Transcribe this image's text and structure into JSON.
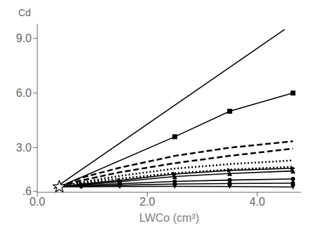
{
  "chart_data": {
    "type": "line",
    "x_label": "LWCo (cm³)",
    "y_label": "Cd",
    "xlim": [
      0.0,
      4.8
    ],
    "xticks": [
      {
        "value": 0.0,
        "label": "0.0"
      },
      {
        "value": 2.0,
        "label": "2.0"
      },
      {
        "value": 4.0,
        "label": "4.0"
      }
    ],
    "ylim": [
      0.55,
      9.8
    ],
    "yticks": [
      {
        "value": 0.6,
        "label": ".6"
      },
      {
        "value": 3.0,
        "label": "3.0"
      },
      {
        "value": 6.0,
        "label": "6.0"
      },
      {
        "value": 9.0,
        "label": "9.0"
      }
    ],
    "grid": false,
    "series": [
      {
        "x": [
          0.3,
          4.5
        ],
        "values": [
          0.75,
          9.5
        ],
        "color": "black",
        "line_style": "solid",
        "marker": "none"
      },
      {
        "x": [
          0.4,
          2.5,
          3.5,
          4.65
        ],
        "values": [
          0.85,
          3.6,
          5.0,
          6.0
        ],
        "color": "black",
        "line_style": "solid",
        "marker": "square"
      },
      {
        "x": [
          0.4,
          0.8,
          1.5,
          2.5,
          3.5,
          4.65
        ],
        "values": [
          0.85,
          1.35,
          1.9,
          2.55,
          3.0,
          3.35
        ],
        "color": "black",
        "line_style": "dashed",
        "marker": "none"
      },
      {
        "x": [
          0.4,
          0.8,
          1.5,
          2.5,
          3.5,
          4.65
        ],
        "values": [
          0.85,
          1.2,
          1.65,
          2.15,
          2.55,
          2.95
        ],
        "color": "black",
        "line_style": "dashed",
        "marker": "none"
      },
      {
        "x": [
          0.4,
          0.8,
          1.5,
          2.5,
          3.5,
          4.65
        ],
        "values": [
          0.85,
          1.1,
          1.45,
          1.85,
          2.1,
          2.3
        ],
        "color": "black",
        "line_style": "dotted",
        "marker": "none"
      },
      {
        "x": [
          0.4,
          0.8,
          1.5,
          2.5,
          3.5,
          4.65
        ],
        "values": [
          0.85,
          1.05,
          1.3,
          1.6,
          1.8,
          1.95
        ],
        "color": "black",
        "line_style": "dotted",
        "marker": "none"
      },
      {
        "x": [
          0.4,
          0.8,
          1.5,
          2.5,
          3.5,
          4.65
        ],
        "values": [
          0.85,
          1.0,
          1.2,
          1.55,
          1.75,
          1.87
        ],
        "color": "black",
        "line_style": "solid",
        "marker": "triangle-right"
      },
      {
        "x": [
          0.4,
          0.8,
          1.5,
          2.5,
          3.5,
          4.65
        ],
        "values": [
          0.85,
          0.97,
          1.13,
          1.42,
          1.58,
          1.72
        ],
        "color": "black",
        "line_style": "solid",
        "marker": "triangle-up"
      },
      {
        "x": [
          0.4,
          0.8,
          1.5,
          2.5,
          3.5,
          4.65
        ],
        "values": [
          0.85,
          0.92,
          1.02,
          1.15,
          1.22,
          1.28
        ],
        "color": "black",
        "line_style": "solid",
        "marker": "circle"
      },
      {
        "x": [
          0.4,
          0.8,
          1.5,
          2.5,
          3.5,
          4.65
        ],
        "values": [
          0.85,
          0.88,
          0.94,
          1.0,
          1.03,
          1.05
        ],
        "color": "black",
        "line_style": "solid",
        "marker": "circle"
      },
      {
        "x": [
          0.4,
          0.8,
          1.5,
          2.5,
          3.5,
          4.65
        ],
        "values": [
          0.85,
          0.85,
          0.87,
          0.88,
          0.87,
          0.84
        ],
        "color": "black",
        "line_style": "solid",
        "marker": "triangle-down"
      },
      {
        "x": [
          0.4
        ],
        "values": [
          0.85
        ],
        "color": "black",
        "line_style": "none",
        "marker": "star"
      }
    ]
  }
}
